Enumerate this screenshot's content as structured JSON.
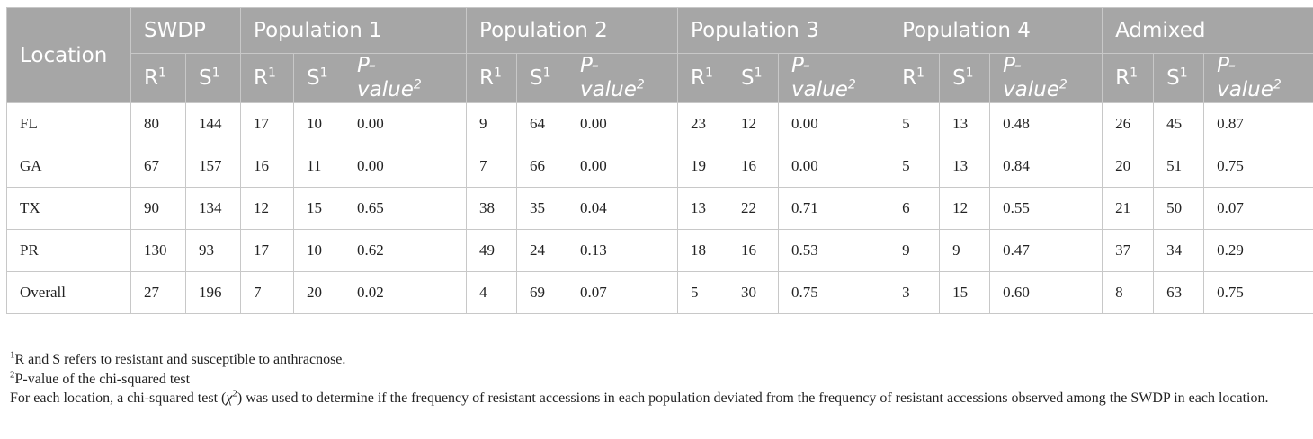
{
  "table": {
    "groups": [
      "SWDP",
      "Population 1",
      "Population 2",
      "Population 3",
      "Population 4",
      "Admixed"
    ],
    "location_header": "Location",
    "sub": {
      "r": "R",
      "s": "S",
      "sup1": "1",
      "p_line1": "P-",
      "p_line2": "value",
      "sup2": "2"
    },
    "rows": [
      {
        "location": "FL",
        "cells": [
          "80",
          "144",
          "17",
          "10",
          "0.00",
          "9",
          "64",
          "0.00",
          "23",
          "12",
          "0.00",
          "5",
          "13",
          "0.48",
          "26",
          "45",
          "0.87"
        ]
      },
      {
        "location": "GA",
        "cells": [
          "67",
          "157",
          "16",
          "11",
          "0.00",
          "7",
          "66",
          "0.00",
          "19",
          "16",
          "0.00",
          "5",
          "13",
          "0.84",
          "20",
          "51",
          "0.75"
        ]
      },
      {
        "location": "TX",
        "cells": [
          "90",
          "134",
          "12",
          "15",
          "0.65",
          "38",
          "35",
          "0.04",
          "13",
          "22",
          "0.71",
          "6",
          "12",
          "0.55",
          "21",
          "50",
          "0.07"
        ]
      },
      {
        "location": "PR",
        "cells": [
          "130",
          "93",
          "17",
          "10",
          "0.62",
          "49",
          "24",
          "0.13",
          "18",
          "16",
          "0.53",
          "9",
          "9",
          "0.47",
          "37",
          "34",
          "0.29"
        ]
      },
      {
        "location": "Overall",
        "cells": [
          "27",
          "196",
          "7",
          "20",
          "0.02",
          "4",
          "69",
          "0.07",
          "5",
          "30",
          "0.75",
          "3",
          "15",
          "0.60",
          "8",
          "63",
          "0.75"
        ]
      }
    ]
  },
  "footnotes": {
    "f1_sup": "1",
    "f1": "R and S refers to resistant and susceptible to anthracnose.",
    "f2_sup": "2",
    "f2": "P-value of the chi-squared test",
    "f3_a": "For each location, a chi-squared test (",
    "f3_chi": "χ",
    "f3_chi_sup": "2",
    "f3_b": ") was used to determine if the frequency of resistant accessions in each population deviated from the frequency of resistant accessions observed among the SWDP in each location."
  }
}
